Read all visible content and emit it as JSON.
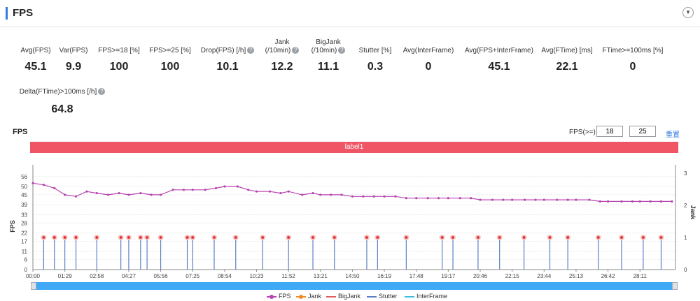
{
  "header": {
    "title": "FPS"
  },
  "metrics": [
    {
      "label": "Avg(FPS)",
      "value": "45.1",
      "help": false
    },
    {
      "label": "Var(FPS)",
      "value": "9.9",
      "help": false
    },
    {
      "label": "FPS>=18 [%]",
      "value": "100",
      "help": false
    },
    {
      "label": "FPS>=25 [%]",
      "value": "100",
      "help": false
    },
    {
      "label": "Drop(FPS) [/h]",
      "value": "10.1",
      "help": true
    },
    {
      "label": "Jank\n(/10min)",
      "value": "12.2",
      "help": true
    },
    {
      "label": "BigJank\n(/10min)",
      "value": "11.1",
      "help": true
    },
    {
      "label": "Stutter [%]",
      "value": "0.3",
      "help": false
    },
    {
      "label": "Avg(InterFrame)",
      "value": "0",
      "help": false
    },
    {
      "label": "Avg(FPS+InterFrame)",
      "value": "45.1",
      "help": false
    },
    {
      "label": "Avg(FTime) [ms]",
      "value": "22.1",
      "help": false
    },
    {
      "label": "FTime>=100ms [%]",
      "value": "0",
      "help": false
    },
    {
      "label": "Delta(FTime)>100ms [/h]",
      "value": "64.8",
      "help": true
    }
  ],
  "chart_header": {
    "title": "FPS",
    "threshold_label": "FPS(>=)",
    "threshold_1": "18",
    "threshold_2": "25",
    "reset_label": "重置"
  },
  "label_band": "label1",
  "chart_data": {
    "type": "line",
    "ylabel_left": "FPS",
    "ylabel_right": "Jank",
    "y_left_ticks": [
      "0",
      "6",
      "11",
      "17",
      "22",
      "28",
      "33",
      "39",
      "45",
      "50",
      "56"
    ],
    "y_left_range": [
      0,
      58
    ],
    "y_right_ticks": [
      "0",
      "1",
      "2",
      "3"
    ],
    "y_right_range": [
      0,
      3
    ],
    "x_ticks": [
      "00:00",
      "01:29",
      "02:58",
      "04:27",
      "05:56",
      "07:25",
      "08:54",
      "10:23",
      "11:52",
      "13:21",
      "14:50",
      "16:19",
      "17:48",
      "19:17",
      "20:46",
      "22:15",
      "23:44",
      "25:13",
      "26:42",
      "28:11"
    ],
    "x_range_s": [
      0,
      1790
    ],
    "fps_series": {
      "name": "FPS",
      "x_s": [
        0,
        30,
        60,
        89,
        120,
        150,
        178,
        210,
        240,
        267,
        300,
        330,
        356,
        390,
        420,
        445,
        480,
        510,
        534,
        570,
        600,
        623,
        660,
        690,
        712,
        750,
        780,
        801,
        830,
        860,
        890,
        920,
        950,
        979,
        1010,
        1040,
        1068,
        1100,
        1130,
        1157,
        1190,
        1220,
        1246,
        1280,
        1310,
        1335,
        1370,
        1400,
        1424,
        1460,
        1490,
        1513,
        1550,
        1580,
        1602,
        1640,
        1670,
        1691,
        1720,
        1750,
        1780
      ],
      "y": [
        52,
        51,
        49,
        45,
        44,
        47,
        46,
        45,
        46,
        45,
        46,
        45,
        45,
        48,
        48,
        48,
        48,
        49,
        50,
        50,
        48,
        47,
        47,
        46,
        47,
        45,
        46,
        45,
        45,
        45,
        44,
        44,
        44,
        44,
        44,
        43,
        43,
        43,
        43,
        43,
        43,
        43,
        42,
        42,
        42,
        42,
        42,
        42,
        42,
        42,
        42,
        42,
        42,
        41,
        41,
        41,
        41,
        41,
        41,
        41,
        41
      ]
    },
    "jank_series": {
      "name": "Jank",
      "x_s": [
        30,
        60,
        89,
        120,
        178,
        245,
        267,
        300,
        318,
        356,
        430,
        445,
        505,
        565,
        640,
        712,
        780,
        840,
        930,
        960,
        1040,
        1140,
        1170,
        1240,
        1300,
        1368,
        1440,
        1490,
        1575,
        1640,
        1700,
        1750
      ],
      "y": [
        1,
        1,
        1,
        1,
        1,
        1,
        1,
        1,
        1,
        1,
        1,
        1,
        1,
        1,
        1,
        1,
        1,
        1,
        1,
        1,
        1,
        1,
        1,
        1,
        1,
        1,
        1,
        1,
        1,
        1,
        1,
        1
      ]
    },
    "legend": [
      "FPS",
      "Jank",
      "BigJank",
      "Stutter",
      "InterFrame"
    ],
    "colors": {
      "FPS": "#b744b0",
      "Jank": "#f08c28",
      "BigJank": "#e25c5c",
      "Stutter": "#5b7fc7",
      "InterFrame": "#3fbde0"
    },
    "grid": true,
    "legend_position": "bottom-center"
  }
}
